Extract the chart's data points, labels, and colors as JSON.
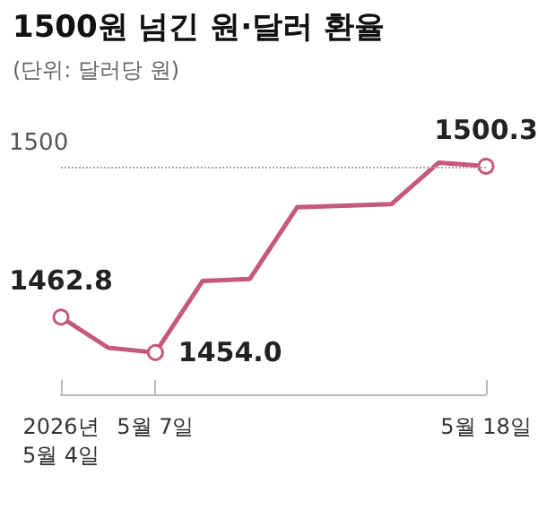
{
  "chart_data": {
    "type": "line",
    "title": "1500원 넘긴 원·달러 환율",
    "subtitle": "(단위: 달러당 원)",
    "categories": [
      "2026년\n5월 4일",
      null,
      "5월 7일",
      null,
      null,
      null,
      null,
      null,
      null,
      "5월 18일"
    ],
    "series": [
      {
        "color": "#c4587e",
        "values": [
          1462.8,
          1455.2,
          1454.0,
          1471.8,
          1472.3,
          1490.1,
          1490.5,
          1490.9,
          1501.2,
          1500.3
        ],
        "value_labels": [
          "1462.8",
          null,
          "1454.0",
          null,
          null,
          null,
          null,
          null,
          null,
          "1500.3"
        ]
      }
    ],
    "ref_lines": [
      {
        "axis": "y",
        "value": 1500,
        "label": "1500",
        "color": "#aaaaaa",
        "line_style": "dotted"
      }
    ],
    "line_style": "solid",
    "grid": false,
    "tick_labels": "x"
  }
}
